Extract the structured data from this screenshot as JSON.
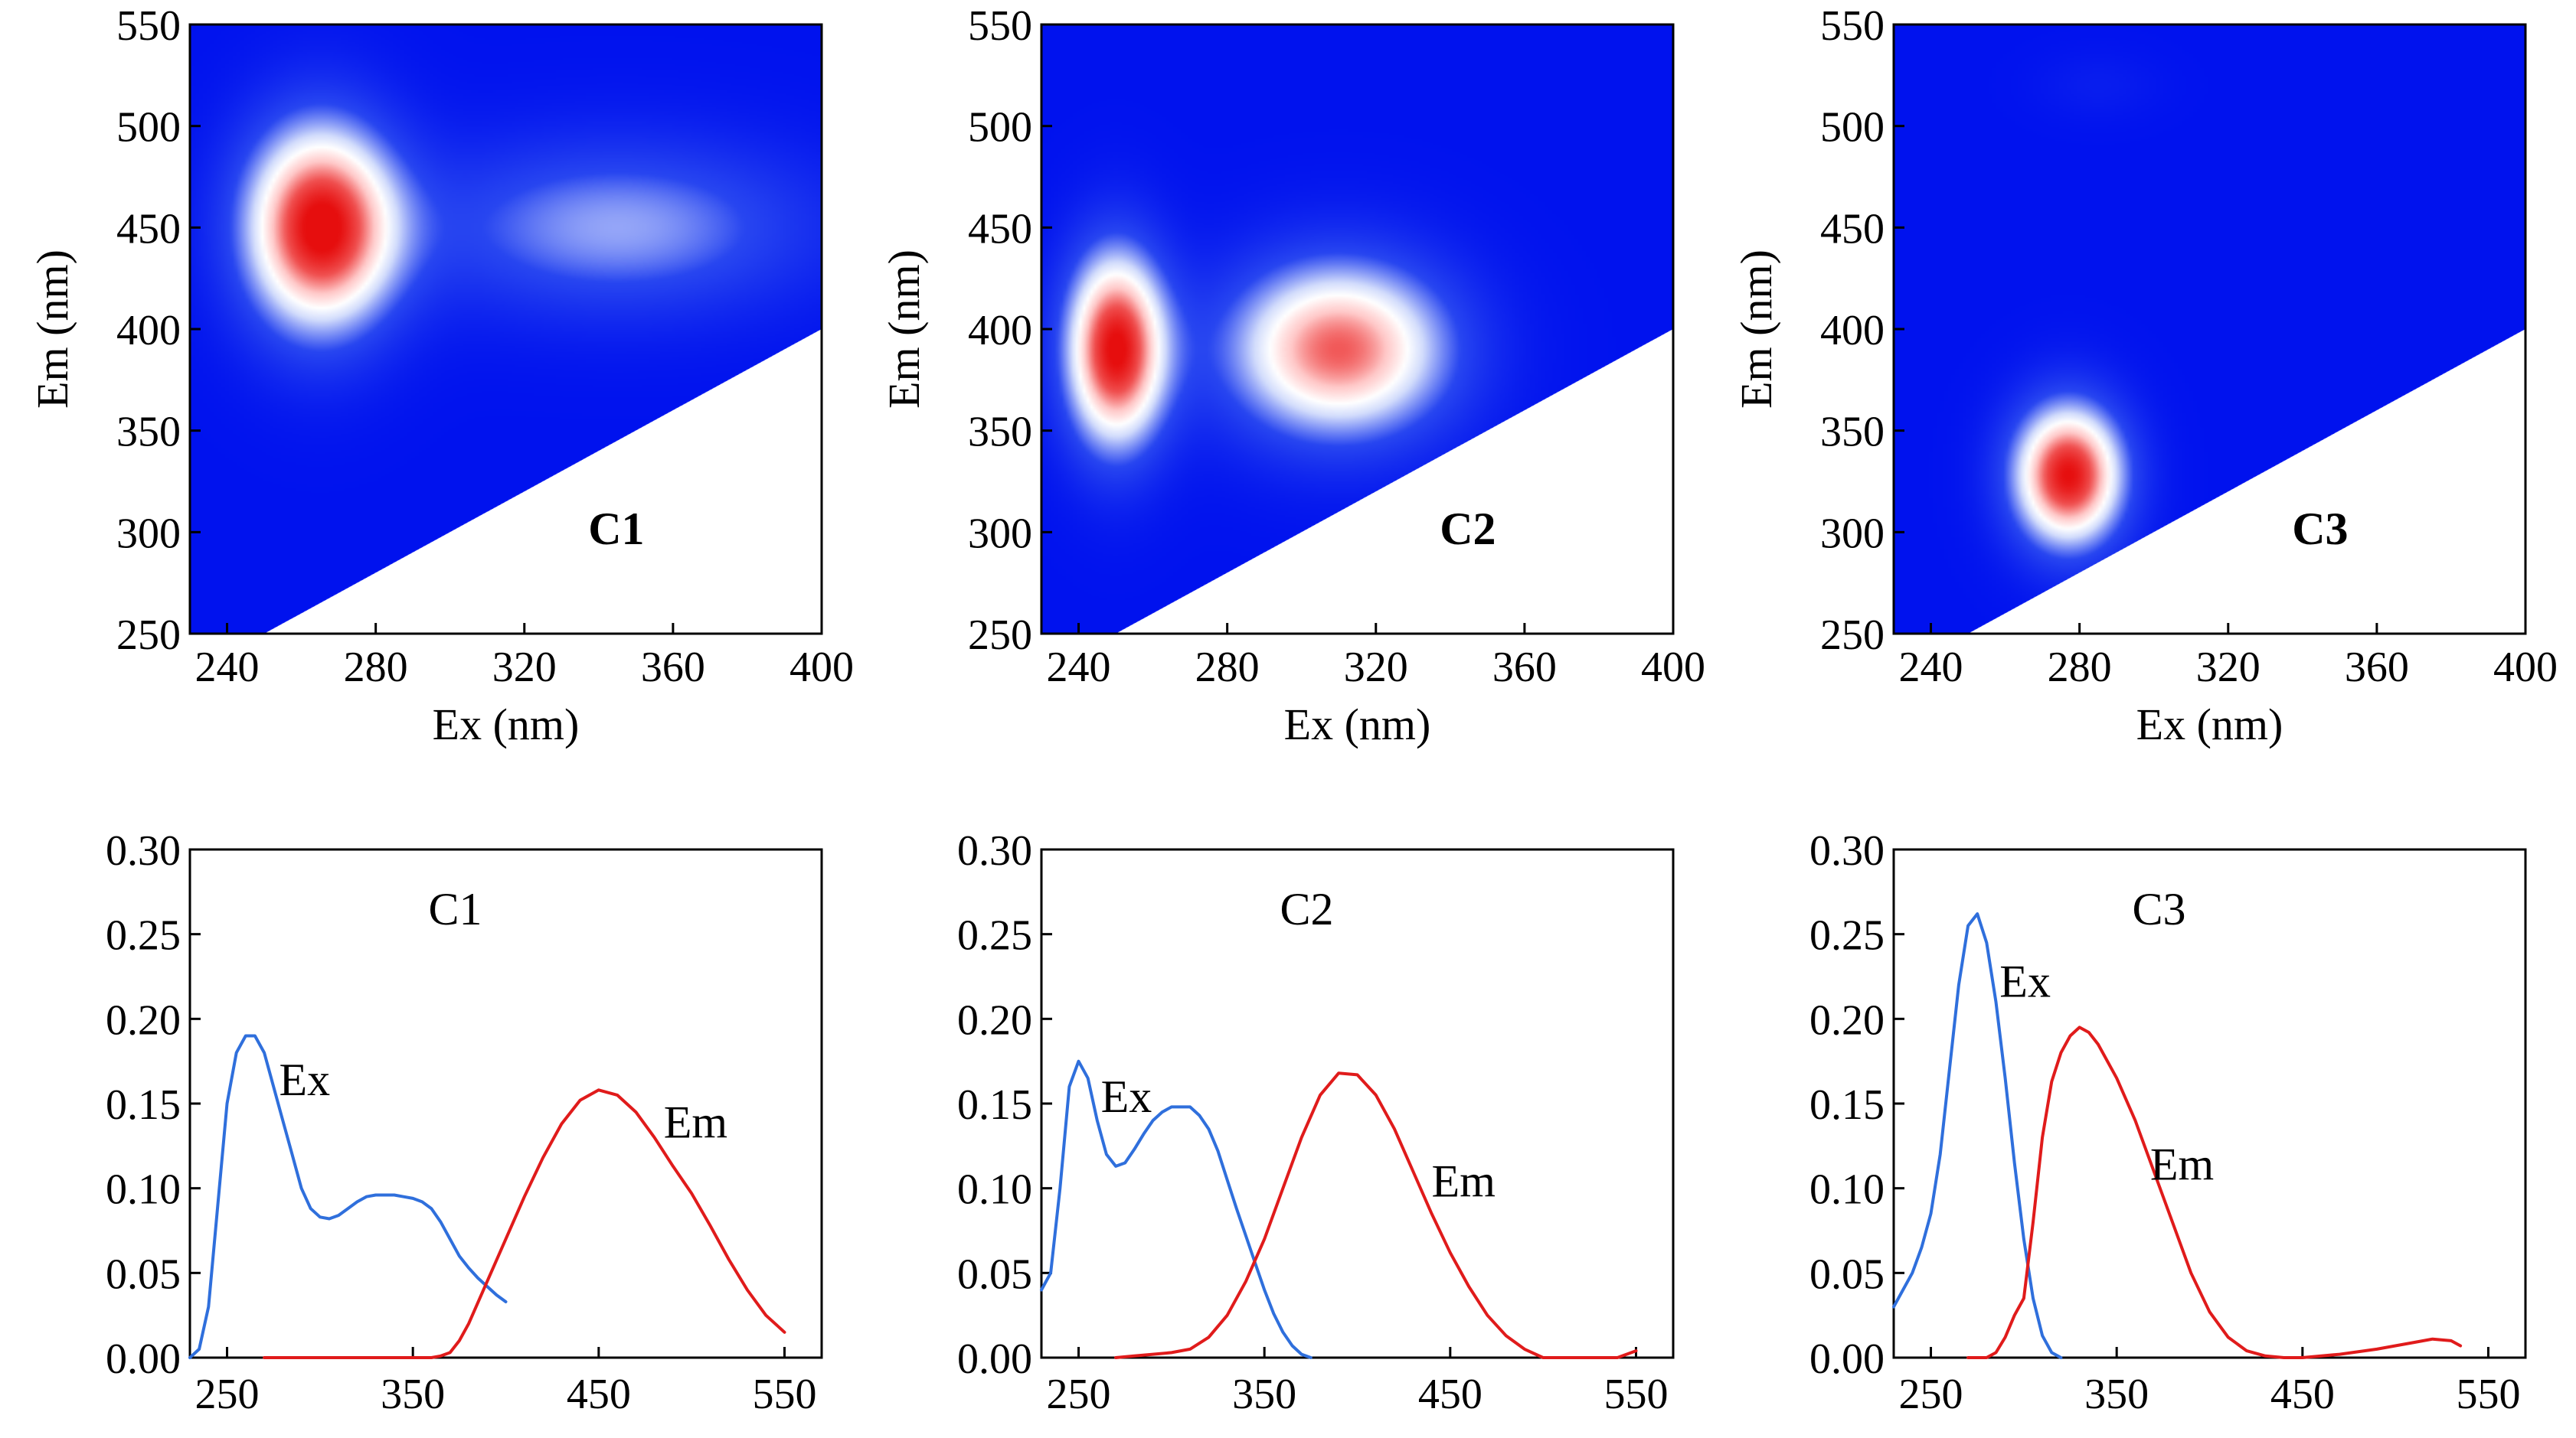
{
  "figure": {
    "title": ""
  },
  "chart_data": [
    {
      "id": "eem-c1",
      "type": "heatmap",
      "title": "C1",
      "xlabel": "Ex (nm)",
      "ylabel": "Em (nm)",
      "xlim": [
        230,
        400
      ],
      "ylim": [
        250,
        550
      ],
      "xticks": [
        240,
        280,
        320,
        360,
        400
      ],
      "yticks": [
        250,
        300,
        350,
        400,
        450,
        500,
        550
      ],
      "masked_region": {
        "description": "blank where Em < Ex",
        "boundary": [
          [
            250,
            250
          ],
          [
            400,
            400
          ]
        ]
      },
      "peaks": [
        {
          "ex": 265,
          "em": 450,
          "intensity": 1.0,
          "sx": 15,
          "sy": 38
        },
        {
          "ex": 345,
          "em": 450,
          "intensity": 0.42,
          "sx": 38,
          "sy": 30
        }
      ]
    },
    {
      "id": "eem-c2",
      "type": "heatmap",
      "title": "C2",
      "xlabel": "Ex (nm)",
      "ylabel": "Em (nm)",
      "xlim": [
        230,
        400
      ],
      "ylim": [
        250,
        550
      ],
      "xticks": [
        240,
        280,
        320,
        360,
        400
      ],
      "yticks": [
        250,
        300,
        350,
        400,
        450,
        500,
        550
      ],
      "masked_region": {
        "description": "blank where Em < Ex",
        "boundary": [
          [
            250,
            250
          ],
          [
            400,
            400
          ]
        ]
      },
      "peaks": [
        {
          "ex": 250,
          "em": 390,
          "intensity": 1.0,
          "sx": 10,
          "sy": 36
        },
        {
          "ex": 310,
          "em": 390,
          "intensity": 0.85,
          "sx": 22,
          "sy": 32
        }
      ]
    },
    {
      "id": "eem-c3",
      "type": "heatmap",
      "title": "C3",
      "xlabel": "Ex (nm)",
      "ylabel": "Em (nm)",
      "xlim": [
        230,
        400
      ],
      "ylim": [
        250,
        550
      ],
      "xticks": [
        240,
        280,
        320,
        360,
        400
      ],
      "yticks": [
        250,
        300,
        350,
        400,
        450,
        500,
        550
      ],
      "masked_region": {
        "description": "blank where Em < Ex",
        "boundary": [
          [
            250,
            250
          ],
          [
            400,
            400
          ]
        ]
      },
      "peaks": [
        {
          "ex": 277,
          "em": 328,
          "intensity": 1.0,
          "sx": 11,
          "sy": 26
        },
        {
          "ex": 285,
          "em": 520,
          "intensity": 0.06,
          "sx": 12,
          "sy": 12
        }
      ]
    },
    {
      "id": "spec-c1",
      "type": "line",
      "title": "C1",
      "xlim": [
        230,
        570
      ],
      "ylim": [
        0,
        0.3
      ],
      "xticks": [
        250,
        350,
        450,
        550
      ],
      "yticks": [
        0,
        0.05,
        0.1,
        0.15,
        0.2,
        0.25,
        0.3
      ],
      "series": [
        {
          "name": "Ex",
          "color": "#2f6fdc",
          "label_at": [
            278,
            0.155
          ],
          "x": [
            230,
            235,
            240,
            245,
            250,
            255,
            260,
            265,
            270,
            275,
            280,
            285,
            290,
            295,
            300,
            305,
            310,
            315,
            320,
            325,
            330,
            335,
            340,
            345,
            350,
            355,
            360,
            365,
            370,
            375,
            380,
            385,
            390,
            395,
            400
          ],
          "y": [
            0.0,
            0.005,
            0.03,
            0.09,
            0.15,
            0.18,
            0.19,
            0.19,
            0.18,
            0.16,
            0.14,
            0.12,
            0.1,
            0.088,
            0.083,
            0.082,
            0.084,
            0.088,
            0.092,
            0.095,
            0.096,
            0.096,
            0.096,
            0.095,
            0.094,
            0.092,
            0.088,
            0.08,
            0.07,
            0.06,
            0.053,
            0.047,
            0.042,
            0.037,
            0.033
          ]
        },
        {
          "name": "Em",
          "color": "#e01b1b",
          "label_at": [
            485,
            0.13
          ],
          "x": [
            270,
            300,
            340,
            360,
            365,
            370,
            375,
            380,
            390,
            400,
            410,
            420,
            430,
            440,
            450,
            460,
            470,
            480,
            490,
            500,
            510,
            520,
            530,
            540,
            550
          ],
          "y": [
            0,
            0,
            0,
            0,
            0.001,
            0.003,
            0.01,
            0.02,
            0.045,
            0.07,
            0.095,
            0.118,
            0.138,
            0.152,
            0.158,
            0.155,
            0.145,
            0.13,
            0.113,
            0.097,
            0.078,
            0.058,
            0.04,
            0.025,
            0.015
          ]
        }
      ]
    },
    {
      "id": "spec-c2",
      "type": "line",
      "title": "C2",
      "xlim": [
        230,
        570
      ],
      "ylim": [
        0,
        0.3
      ],
      "xticks": [
        250,
        350,
        450,
        550
      ],
      "yticks": [
        0,
        0.05,
        0.1,
        0.15,
        0.2,
        0.25,
        0.3
      ],
      "series": [
        {
          "name": "Ex",
          "color": "#2f6fdc",
          "label_at": [
            262,
            0.145
          ],
          "x": [
            230,
            235,
            240,
            245,
            250,
            255,
            260,
            265,
            270,
            275,
            280,
            285,
            290,
            295,
            300,
            305,
            310,
            315,
            320,
            325,
            330,
            335,
            340,
            345,
            350,
            355,
            360,
            365,
            370,
            375
          ],
          "y": [
            0.04,
            0.05,
            0.1,
            0.16,
            0.175,
            0.165,
            0.14,
            0.12,
            0.113,
            0.115,
            0.123,
            0.132,
            0.14,
            0.145,
            0.148,
            0.148,
            0.148,
            0.143,
            0.135,
            0.122,
            0.105,
            0.088,
            0.072,
            0.056,
            0.04,
            0.026,
            0.015,
            0.007,
            0.002,
            0.0
          ]
        },
        {
          "name": "Em",
          "color": "#e01b1b",
          "label_at": [
            440,
            0.095
          ],
          "x": [
            270,
            280,
            290,
            300,
            310,
            320,
            330,
            340,
            350,
            360,
            370,
            380,
            390,
            400,
            410,
            420,
            430,
            440,
            450,
            460,
            470,
            480,
            490,
            500,
            520,
            540,
            550
          ],
          "y": [
            0,
            0.001,
            0.002,
            0.003,
            0.005,
            0.012,
            0.025,
            0.045,
            0.07,
            0.1,
            0.13,
            0.155,
            0.168,
            0.167,
            0.155,
            0.135,
            0.11,
            0.085,
            0.062,
            0.042,
            0.025,
            0.013,
            0.005,
            0.0,
            0.0,
            0.0,
            0.004
          ]
        }
      ]
    },
    {
      "id": "spec-c3",
      "type": "line",
      "title": "C3",
      "xlim": [
        230,
        570
      ],
      "ylim": [
        0,
        0.3
      ],
      "xticks": [
        250,
        350,
        450,
        550
      ],
      "yticks": [
        0,
        0.05,
        0.1,
        0.15,
        0.2,
        0.25,
        0.3
      ],
      "series": [
        {
          "name": "Ex",
          "color": "#2f6fdc",
          "label_at": [
            287,
            0.213
          ],
          "x": [
            230,
            235,
            240,
            245,
            250,
            255,
            260,
            265,
            270,
            275,
            280,
            285,
            290,
            295,
            300,
            305,
            310,
            315,
            320
          ],
          "y": [
            0.03,
            0.04,
            0.05,
            0.065,
            0.085,
            0.12,
            0.17,
            0.22,
            0.255,
            0.262,
            0.245,
            0.21,
            0.165,
            0.115,
            0.07,
            0.035,
            0.013,
            0.003,
            0.0
          ]
        },
        {
          "name": "Em",
          "color": "#e01b1b",
          "label_at": [
            368,
            0.105
          ],
          "x": [
            270,
            280,
            285,
            290,
            295,
            300,
            305,
            310,
            315,
            320,
            325,
            330,
            335,
            340,
            350,
            360,
            370,
            380,
            390,
            400,
            410,
            420,
            430,
            440,
            450,
            470,
            490,
            500,
            510,
            520,
            530,
            535
          ],
          "y": [
            0,
            0.0,
            0.003,
            0.012,
            0.025,
            0.035,
            0.08,
            0.13,
            0.163,
            0.18,
            0.19,
            0.195,
            0.192,
            0.185,
            0.165,
            0.14,
            0.11,
            0.08,
            0.05,
            0.027,
            0.012,
            0.004,
            0.001,
            0.0,
            0.0,
            0.002,
            0.005,
            0.007,
            0.009,
            0.011,
            0.01,
            0.007
          ]
        }
      ]
    }
  ]
}
